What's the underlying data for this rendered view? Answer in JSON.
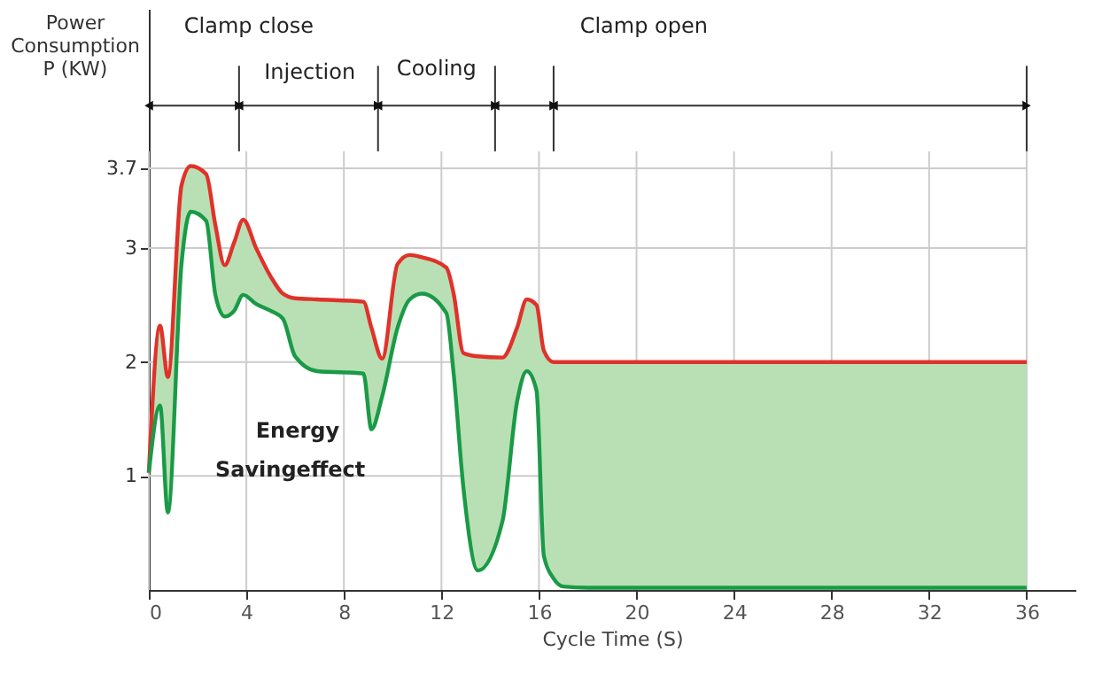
{
  "chart_data": {
    "type": "line",
    "xlabel": "Cycle Time (S)",
    "ylabel": "Power\nConsumption\nP (KW)",
    "x": [
      0,
      0.46,
      0.78,
      1.34,
      1.72,
      2.35,
      2.73,
      3.11,
      3.5,
      3.87,
      4.4,
      5.0,
      5.5,
      6.0,
      6.9,
      8.8,
      9.13,
      9.57,
      10.2,
      10.7,
      11.2,
      12.2,
      12.5,
      12.9,
      13.5,
      14.5,
      15.1,
      15.5,
      15.9,
      16.2,
      16.6,
      17.0,
      18,
      36
    ],
    "series": [
      {
        "color": "#e0322a",
        "values": [
          1.03,
          2.32,
          1.87,
          3.55,
          3.72,
          3.65,
          3.2,
          2.85,
          3.05,
          3.25,
          3.0,
          2.75,
          2.6,
          2.56,
          2.55,
          2.53,
          2.3,
          2.03,
          2.86,
          2.94,
          2.92,
          2.83,
          2.6,
          2.08,
          2.05,
          2.04,
          2.3,
          2.55,
          2.5,
          2.1,
          2.0,
          2.0,
          2.0,
          2.0
        ]
      },
      {
        "color": "#1a9a47",
        "values": [
          1.03,
          1.62,
          0.68,
          2.86,
          3.32,
          3.24,
          2.59,
          2.4,
          2.45,
          2.59,
          2.51,
          2.45,
          2.38,
          2.05,
          1.92,
          1.9,
          1.41,
          1.7,
          2.3,
          2.55,
          2.6,
          2.43,
          1.9,
          0.9,
          0.17,
          0.6,
          1.65,
          1.92,
          1.75,
          0.3,
          0.1,
          0.03,
          0.02,
          0.02
        ],
        "lower": [
          1.03,
          1.62,
          0.68,
          2.86,
          3.32,
          3.24,
          2.59,
          2.4,
          2.45,
          2.59,
          2.51,
          2.45,
          2.38,
          2.05,
          1.92,
          1.9,
          1.41,
          1.7,
          2.3,
          2.55,
          2.6,
          2.43,
          1.9,
          0.9,
          0.17,
          0.6,
          1.65,
          1.92,
          1.75,
          0.3,
          0.1,
          0.03,
          0.02,
          0.02
        ],
        "upper": [
          1.03,
          2.32,
          1.87,
          3.55,
          3.72,
          3.65,
          3.2,
          2.85,
          3.05,
          3.25,
          3.0,
          2.75,
          2.6,
          2.56,
          2.55,
          2.53,
          2.3,
          2.03,
          2.86,
          2.94,
          2.92,
          2.83,
          2.6,
          2.08,
          2.05,
          2.04,
          2.3,
          2.55,
          2.5,
          2.1,
          2.0,
          2.0,
          2.0,
          2.0
        ]
      }
    ],
    "xlim": [
      0,
      38
    ],
    "xticks": [
      0,
      4,
      8,
      12,
      16,
      20,
      24,
      28,
      32,
      36
    ],
    "ylim": [
      0,
      5.1
    ],
    "yticks": [
      1,
      2,
      3,
      {
        "value": 3.7,
        "label": "3.7"
      }
    ],
    "grid": true,
    "marker": "none",
    "line_style": "solid",
    "ref_lines": [
      {
        "axis": "x",
        "value": 3.7,
        "label": null
      },
      {
        "axis": "x",
        "value": 9.4,
        "label": null
      },
      {
        "axis": "x",
        "value": 14.2,
        "label": null
      },
      {
        "axis": "x",
        "value": 16.6,
        "label": null
      },
      {
        "axis": "x",
        "value": 36,
        "label": null
      }
    ],
    "annotations": [
      "Clamp close",
      "Injection",
      "Cooling",
      "Clamp open",
      "Energy",
      "Savingeffect"
    ]
  }
}
